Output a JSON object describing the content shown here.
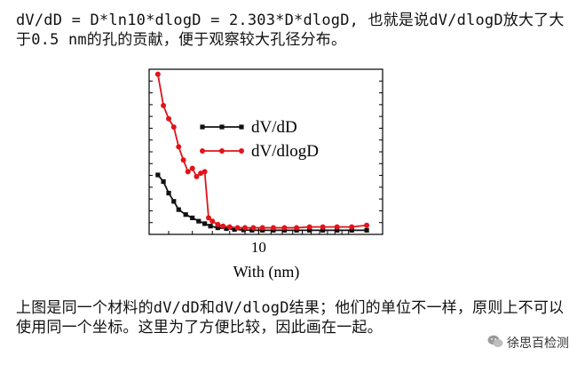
{
  "text_top": "dV/dD = D*ln10*dlogD = 2.303*D*dlogD, 也就是说dV/dlogD放大了大于0.5 nm的孔的贡献，便于观察较大孔径分布。",
  "text_bottom": "上图是同一个材料的dV/dD和dV/dlogD结果；他们的单位不一样，原则上不可以使用同一个坐标。这里为了方便比较，因此画在一起。",
  "watermark": "徐思百检测",
  "colors": {
    "series_black": "#111111",
    "series_red": "#e0141a"
  },
  "chart_data": {
    "type": "line",
    "xscale": "log",
    "xlabel": "With (nm)",
    "ylabel": "",
    "xlim": [
      4.3,
      26
    ],
    "ylim": [
      0,
      1.0
    ],
    "x_ticks": [
      10
    ],
    "y_axis_tick_labels": false,
    "legend_position": "top-right",
    "series": [
      {
        "name": "dV/dD",
        "color": "#111111",
        "marker": "square",
        "x": [
          4.6,
          4.8,
          5.0,
          5.2,
          5.4,
          5.7,
          6.0,
          6.3,
          6.6,
          6.9,
          7.3,
          7.8,
          8.3,
          8.9,
          9.5,
          10.3,
          11.2,
          12.2,
          13.4,
          14.8,
          16.4,
          18.3,
          20.5,
          23.0
        ],
        "values": [
          0.36,
          0.32,
          0.25,
          0.2,
          0.15,
          0.12,
          0.1,
          0.08,
          0.065,
          0.05,
          0.04,
          0.035,
          0.03,
          0.027,
          0.025,
          0.025,
          0.025,
          0.025,
          0.025,
          0.025,
          0.025,
          0.025,
          0.025,
          0.025
        ]
      },
      {
        "name": "dV/dlogD",
        "color": "#e0141a",
        "marker": "circle",
        "x": [
          4.6,
          4.8,
          5.0,
          5.2,
          5.4,
          5.6,
          5.8,
          6.0,
          6.2,
          6.4,
          6.6,
          6.8,
          7.0,
          7.3,
          7.6,
          8.0,
          8.5,
          9.0,
          9.6,
          10.3,
          11.2,
          12.2,
          13.4,
          14.8,
          16.4,
          18.3,
          20.5,
          23.0
        ],
        "values": [
          0.97,
          0.78,
          0.7,
          0.65,
          0.53,
          0.45,
          0.38,
          0.4,
          0.35,
          0.37,
          0.38,
          0.1,
          0.08,
          0.06,
          0.05,
          0.045,
          0.04,
          0.04,
          0.04,
          0.04,
          0.04,
          0.04,
          0.04,
          0.045,
          0.045,
          0.045,
          0.045,
          0.055
        ]
      }
    ]
  }
}
